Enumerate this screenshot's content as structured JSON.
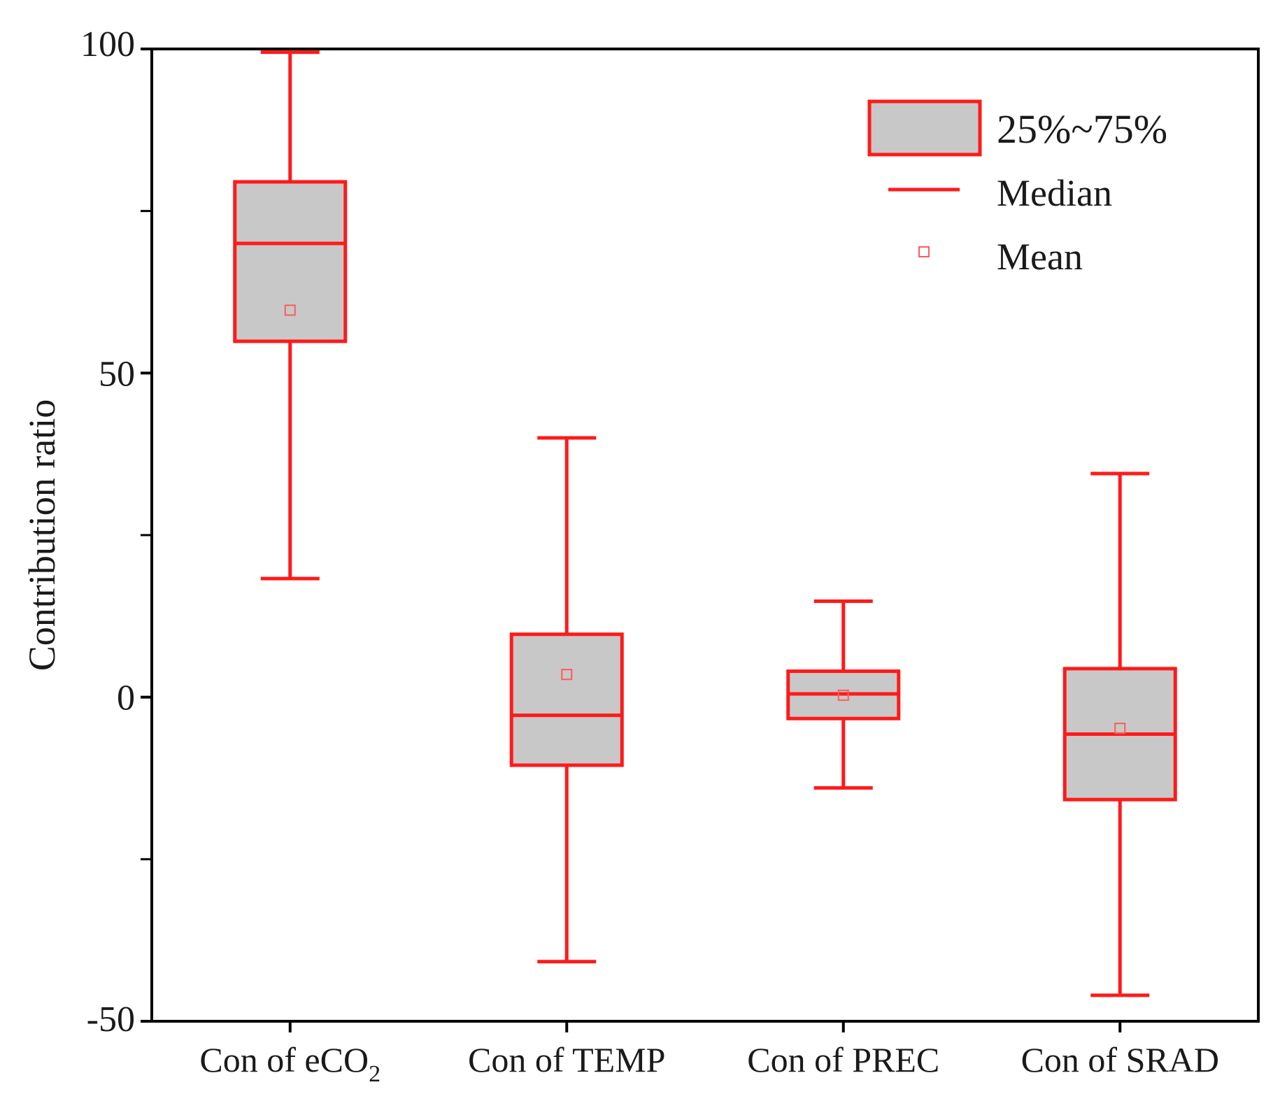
{
  "chart_data": {
    "type": "boxplot",
    "title": "",
    "xlabel": "",
    "ylabel": "Contribution ratio",
    "ylim": [
      -50,
      100
    ],
    "yticks": [
      -50,
      0,
      50,
      100
    ],
    "yticks_minor": [
      -25,
      25,
      75
    ],
    "grid": false,
    "legend_position": "top-right",
    "categories": [
      {
        "prefix": "Con of eCO",
        "sub": "2"
      },
      {
        "prefix": "Con of TEMP",
        "sub": ""
      },
      {
        "prefix": "Con of PREC",
        "sub": ""
      },
      {
        "prefix": "Con of SRAD",
        "sub": ""
      }
    ],
    "boxes": [
      {
        "whisker_low": 18.3,
        "q1": 54.9,
        "median": 70.0,
        "q3": 79.5,
        "whisker_high": 99.5,
        "mean": 59.7
      },
      {
        "whisker_low": -40.8,
        "q1": -10.5,
        "median": -2.8,
        "q3": 9.7,
        "whisker_high": 40.0,
        "mean": 3.5
      },
      {
        "whisker_low": -14.0,
        "q1": -3.3,
        "median": 0.5,
        "q3": 4.0,
        "whisker_high": 14.8,
        "mean": 0.3
      },
      {
        "whisker_low": -46.0,
        "q1": -15.8,
        "median": -5.7,
        "q3": 4.4,
        "whisker_high": 34.5,
        "mean": -4.8
      }
    ],
    "legend": {
      "box_label": "25%~75%",
      "median_label": "Median",
      "mean_label": "Mean"
    },
    "colors": {
      "box_stroke": "#ff1a1a",
      "box_fill": "#c8c8c8",
      "mean_marker": "#ff5a5a",
      "axis": "#000000"
    }
  }
}
